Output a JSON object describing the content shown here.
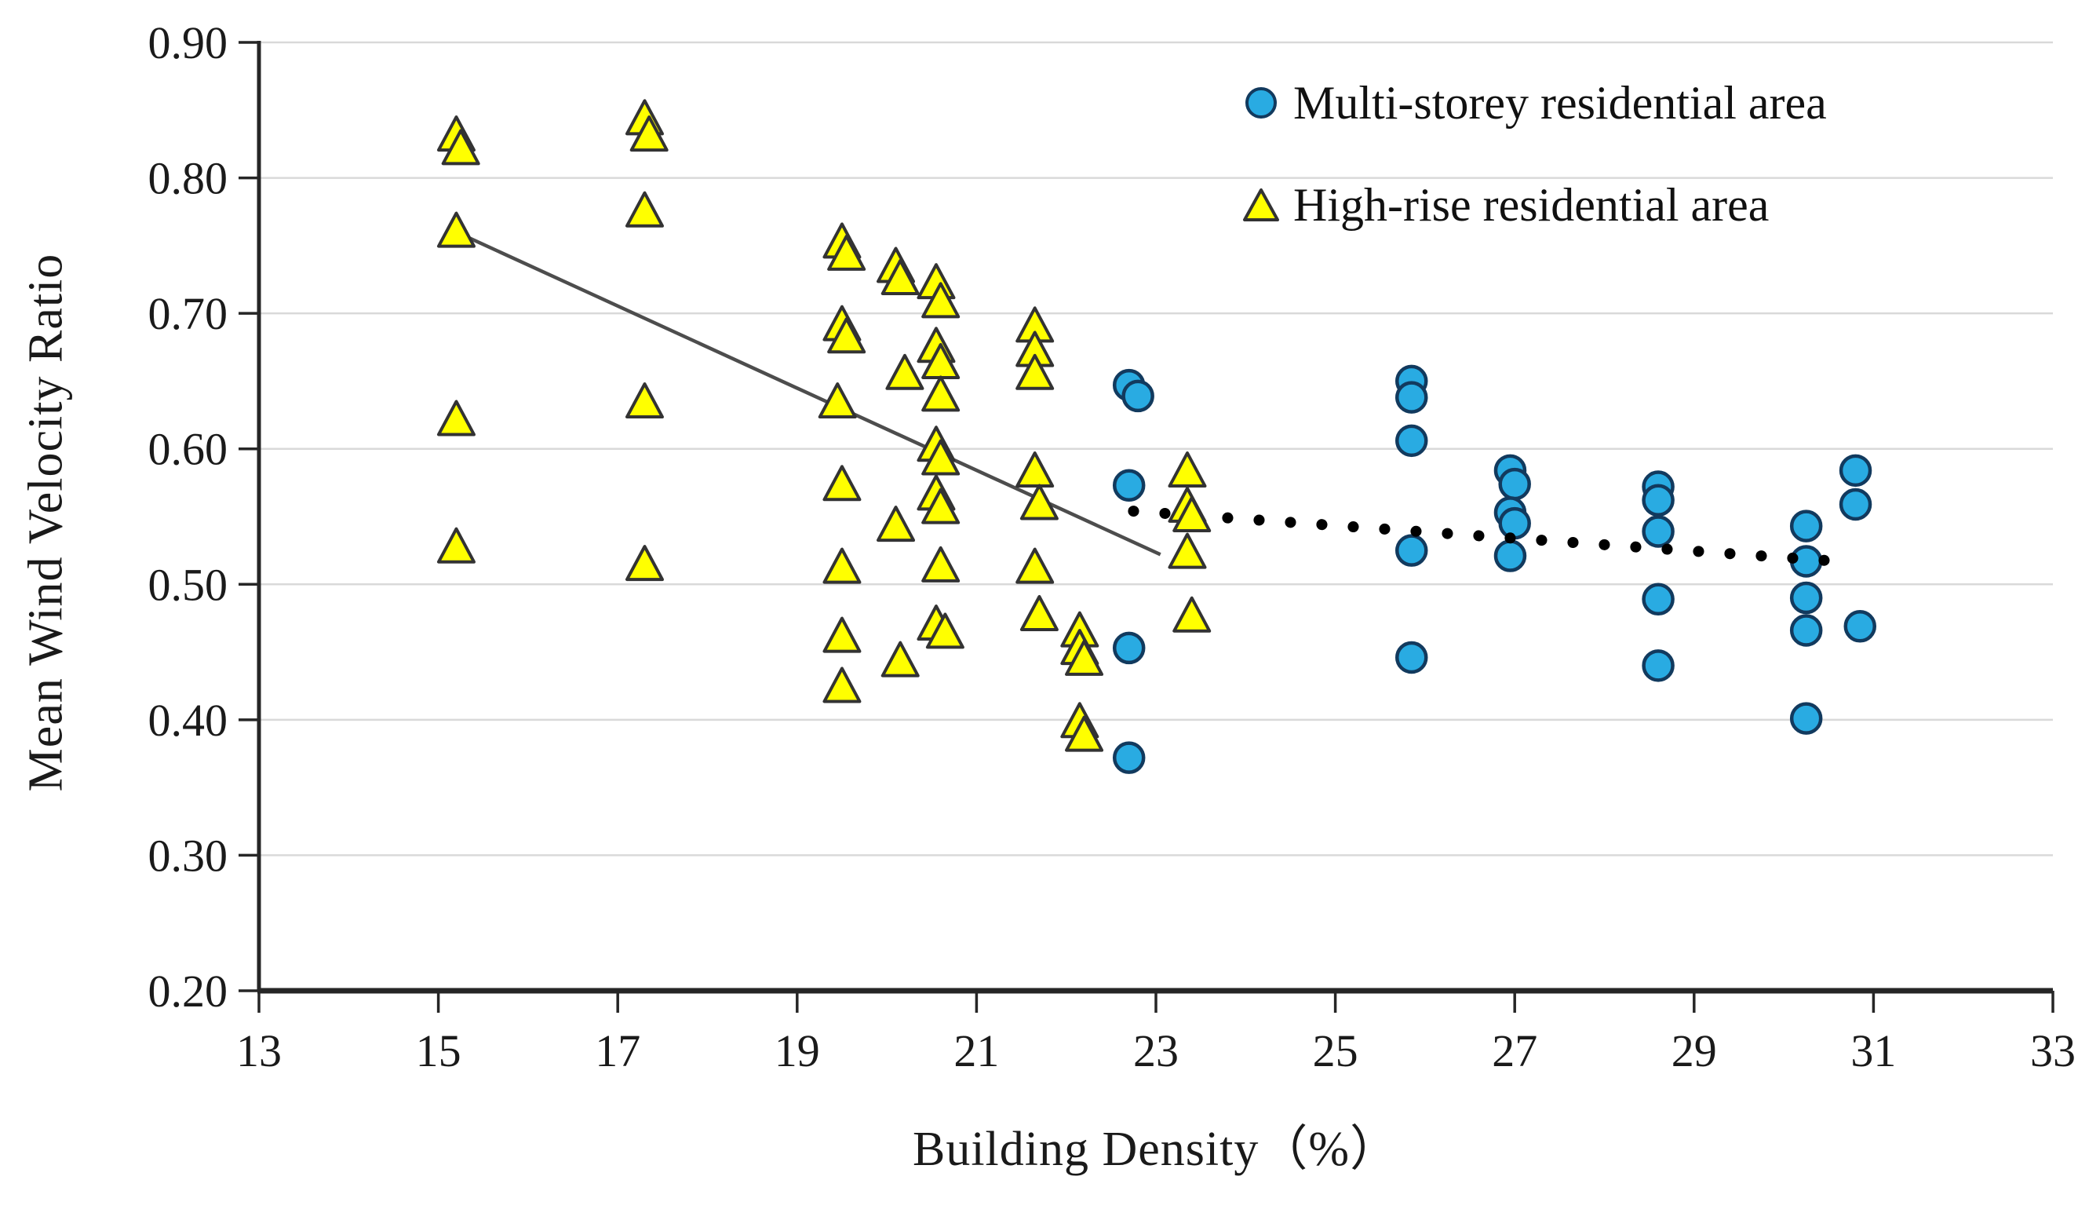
{
  "chart_data": {
    "type": "scatter",
    "title": "",
    "xlabel": "Building Density（%）",
    "ylabel": "Mean Wind Velocity Ratio",
    "xlim": [
      13,
      33
    ],
    "ylim": [
      0.2,
      0.9
    ],
    "x_ticks": [
      13,
      15,
      17,
      19,
      21,
      23,
      25,
      27,
      29,
      31,
      33
    ],
    "y_tick_labels": [
      "0.20",
      "0.30",
      "0.40",
      "0.50",
      "0.60",
      "0.70",
      "0.80",
      "0.90"
    ],
    "grid": "horizontal",
    "legend_position": "inside-top-right",
    "colors": {
      "circle_fill": "#29ABE2",
      "circle_edge": "#123A5E",
      "triangle_fill": "#FFFF00",
      "triangle_edge": "#333333",
      "gridline": "#D9D9D9",
      "axis": "#262626",
      "solid_trend": "#4D4D4D",
      "dotted_trend": "#000000"
    },
    "series": [
      {
        "name": "Multi-storey residential area",
        "marker": "circle",
        "points": [
          [
            22.7,
            0.647
          ],
          [
            22.8,
            0.639
          ],
          [
            22.7,
            0.573
          ],
          [
            22.7,
            0.453
          ],
          [
            22.7,
            0.372
          ],
          [
            25.85,
            0.65
          ],
          [
            25.85,
            0.638
          ],
          [
            25.85,
            0.606
          ],
          [
            25.85,
            0.525
          ],
          [
            25.85,
            0.446
          ],
          [
            26.95,
            0.584
          ],
          [
            27.0,
            0.574
          ],
          [
            26.95,
            0.553
          ],
          [
            27.0,
            0.545
          ],
          [
            26.95,
            0.521
          ],
          [
            28.6,
            0.572
          ],
          [
            28.6,
            0.562
          ],
          [
            28.6,
            0.539
          ],
          [
            28.6,
            0.489
          ],
          [
            28.6,
            0.44
          ],
          [
            30.25,
            0.543
          ],
          [
            30.25,
            0.517
          ],
          [
            30.25,
            0.49
          ],
          [
            30.25,
            0.466
          ],
          [
            30.25,
            0.401
          ],
          [
            30.8,
            0.584
          ],
          [
            30.8,
            0.559
          ],
          [
            30.85,
            0.469
          ]
        ]
      },
      {
        "name": "High-rise residential area",
        "marker": "triangle",
        "points": [
          [
            15.2,
            0.831
          ],
          [
            15.25,
            0.821
          ],
          [
            15.2,
            0.76
          ],
          [
            15.2,
            0.621
          ],
          [
            15.2,
            0.527
          ],
          [
            17.3,
            0.843
          ],
          [
            17.35,
            0.831
          ],
          [
            17.3,
            0.775
          ],
          [
            17.3,
            0.634
          ],
          [
            17.3,
            0.514
          ],
          [
            19.5,
            0.752
          ],
          [
            19.55,
            0.743
          ],
          [
            19.5,
            0.691
          ],
          [
            19.55,
            0.682
          ],
          [
            19.45,
            0.634
          ],
          [
            19.5,
            0.573
          ],
          [
            19.5,
            0.512
          ],
          [
            19.5,
            0.461
          ],
          [
            19.5,
            0.424
          ],
          [
            20.1,
            0.734
          ],
          [
            20.15,
            0.725
          ],
          [
            20.2,
            0.655
          ],
          [
            20.1,
            0.543
          ],
          [
            20.15,
            0.443
          ],
          [
            20.55,
            0.722
          ],
          [
            20.6,
            0.708
          ],
          [
            20.55,
            0.675
          ],
          [
            20.6,
            0.663
          ],
          [
            20.6,
            0.639
          ],
          [
            20.55,
            0.602
          ],
          [
            20.6,
            0.592
          ],
          [
            20.55,
            0.566
          ],
          [
            20.6,
            0.556
          ],
          [
            20.6,
            0.513
          ],
          [
            20.55,
            0.47
          ],
          [
            20.65,
            0.464
          ],
          [
            21.65,
            0.69
          ],
          [
            21.65,
            0.672
          ],
          [
            21.65,
            0.655
          ],
          [
            21.65,
            0.583
          ],
          [
            21.7,
            0.559
          ],
          [
            21.65,
            0.512
          ],
          [
            21.7,
            0.477
          ],
          [
            22.15,
            0.465
          ],
          [
            22.15,
            0.452
          ],
          [
            22.2,
            0.444
          ],
          [
            22.15,
            0.398
          ],
          [
            22.2,
            0.388
          ],
          [
            23.35,
            0.583
          ],
          [
            23.35,
            0.557
          ],
          [
            23.4,
            0.55
          ],
          [
            23.35,
            0.523
          ],
          [
            23.4,
            0.476
          ]
        ]
      }
    ],
    "trend_lines": [
      {
        "series": "High-rise residential area",
        "style": "solid",
        "from": [
          15.2,
          0.76
        ],
        "to": [
          23.05,
          0.522
        ]
      },
      {
        "series": "Multi-storey residential area",
        "style": "dotted",
        "from": [
          22.75,
          0.554
        ],
        "to": [
          30.7,
          0.5165
        ]
      }
    ]
  }
}
